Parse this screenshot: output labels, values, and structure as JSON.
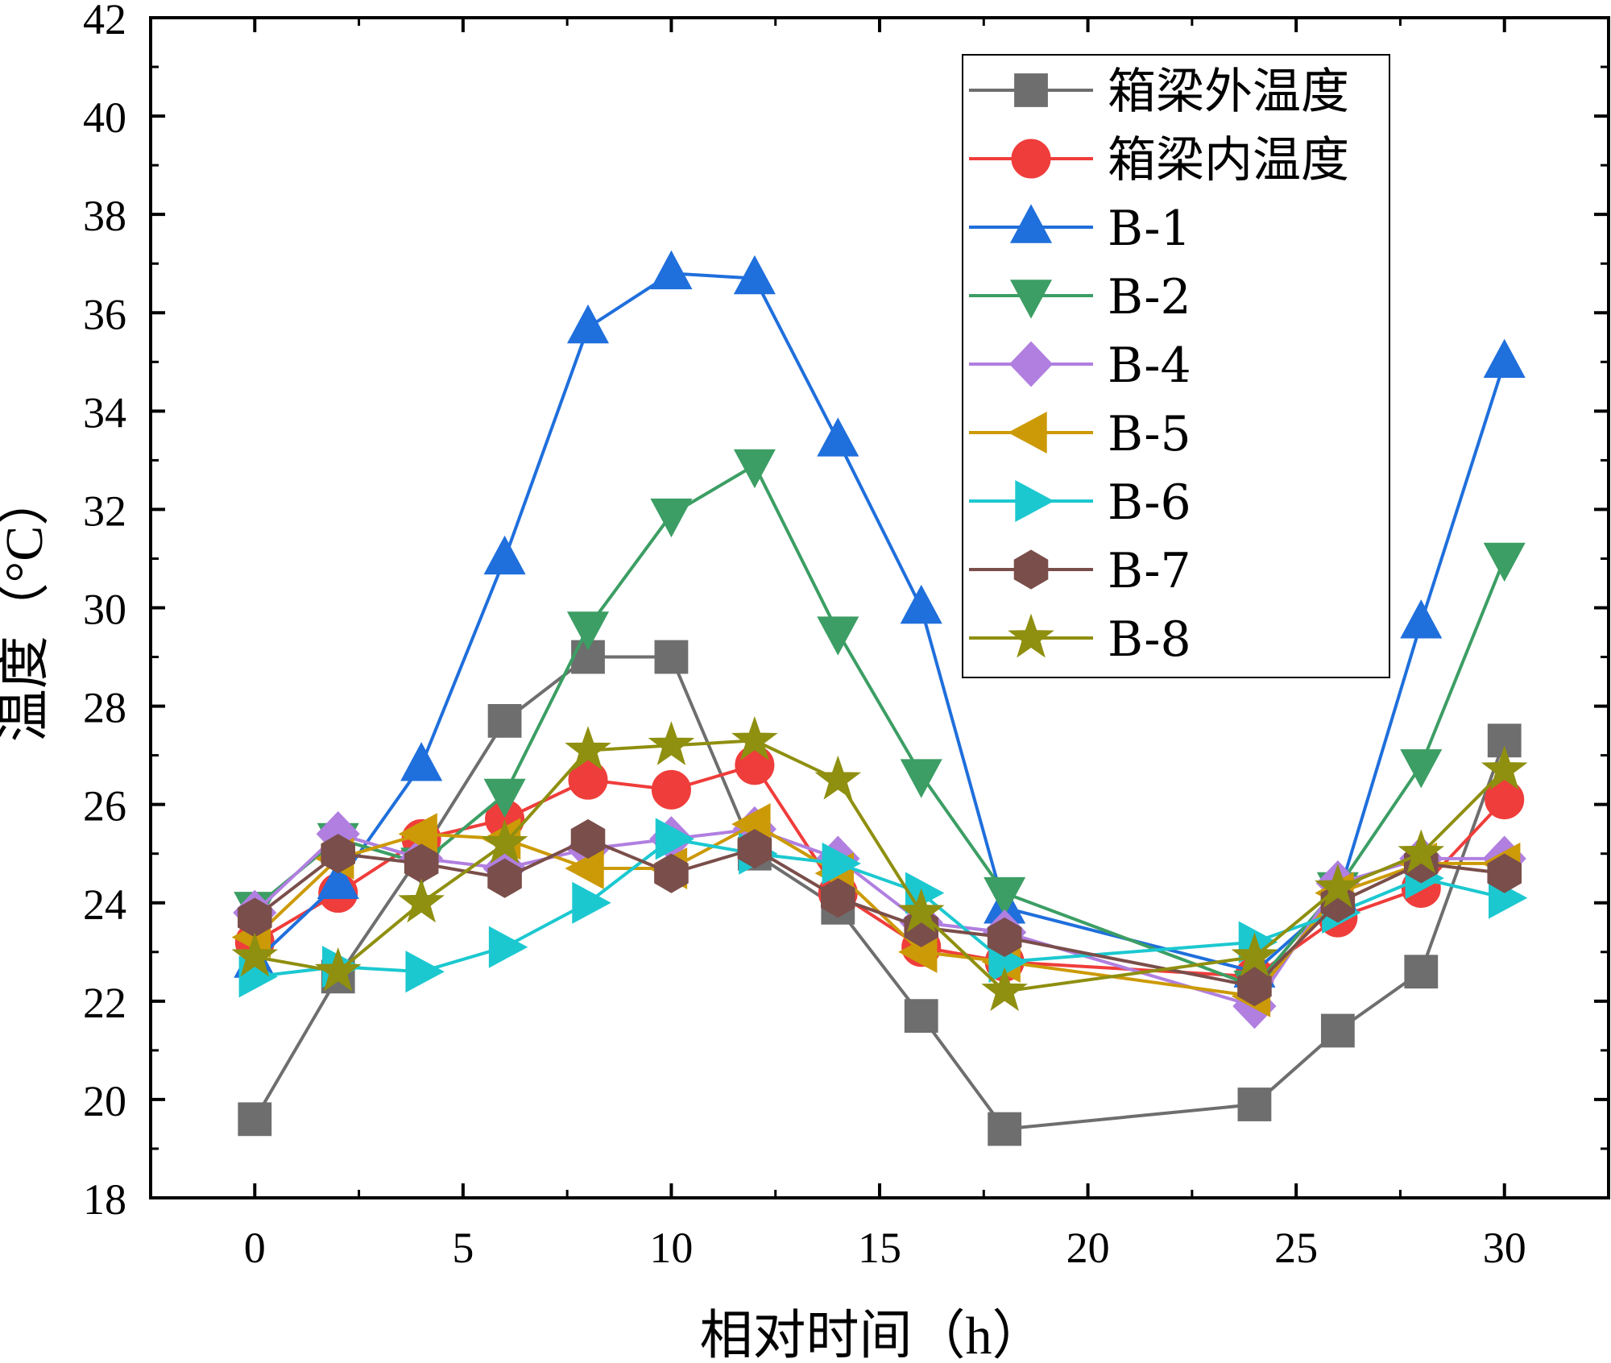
{
  "chart_data": {
    "type": "line",
    "title": "",
    "xlabel": "相对时间（h）",
    "ylabel": "温度（°C）",
    "xlim": [
      -2.5,
      32.5
    ],
    "ylim": [
      18,
      42
    ],
    "x_ticks": [
      "0",
      "5",
      "10",
      "15",
      "20",
      "25",
      "30"
    ],
    "x_tick_values": [
      0,
      5,
      10,
      15,
      20,
      25,
      30
    ],
    "y_ticks": [
      "18",
      "20",
      "22",
      "24",
      "26",
      "28",
      "30",
      "32",
      "34",
      "36",
      "38",
      "40",
      "42"
    ],
    "y_tick_values": [
      18,
      20,
      22,
      24,
      26,
      28,
      30,
      32,
      34,
      36,
      38,
      40,
      42
    ],
    "legend_position": "top-right",
    "x": [
      0,
      2,
      4,
      6,
      8,
      10,
      12,
      14,
      16,
      18,
      24,
      26,
      28,
      30
    ],
    "series": [
      {
        "name": "箱梁外温度",
        "color": "#6e6e6e",
        "marker": "square",
        "values": [
          19.6,
          22.5,
          25.0,
          27.7,
          29.0,
          29.0,
          25.0,
          23.9,
          21.7,
          19.4,
          19.9,
          21.4,
          22.6,
          27.3
        ]
      },
      {
        "name": "箱梁内温度",
        "color": "#ef3d3b",
        "marker": "circle",
        "values": [
          23.2,
          24.2,
          25.3,
          25.7,
          26.5,
          26.3,
          26.8,
          24.2,
          23.1,
          22.8,
          22.5,
          23.7,
          24.3,
          26.1
        ]
      },
      {
        "name": "B-1",
        "color": "#1f6fdc",
        "marker": "triangle-up",
        "values": [
          22.8,
          24.4,
          26.8,
          31.0,
          35.7,
          36.8,
          36.7,
          33.4,
          30.0,
          23.9,
          22.6,
          24.1,
          29.7,
          35.0
        ]
      },
      {
        "name": "B-2",
        "color": "#3c9e64",
        "marker": "triangle-down",
        "values": [
          23.9,
          25.3,
          24.8,
          26.2,
          29.6,
          31.9,
          32.9,
          29.5,
          26.6,
          24.2,
          22.3,
          24.3,
          26.8,
          31.0
        ]
      },
      {
        "name": "B-4",
        "color": "#b07fe0",
        "marker": "diamond",
        "values": [
          23.8,
          25.4,
          24.9,
          24.7,
          25.1,
          25.3,
          25.5,
          24.9,
          23.6,
          23.4,
          21.9,
          24.4,
          24.9,
          24.9
        ]
      },
      {
        "name": "B-5",
        "color": "#cc9a06",
        "marker": "triangle-left",
        "values": [
          23.3,
          24.9,
          25.4,
          25.3,
          24.7,
          24.7,
          25.6,
          24.6,
          23.0,
          22.8,
          22.1,
          24.2,
          24.8,
          24.8
        ]
      },
      {
        "name": "B-6",
        "color": "#1cc8d0",
        "marker": "triangle-right",
        "values": [
          22.5,
          22.7,
          22.6,
          23.1,
          24.0,
          25.3,
          25.0,
          24.8,
          24.2,
          22.8,
          23.2,
          23.8,
          24.5,
          24.1
        ]
      },
      {
        "name": "B-7",
        "color": "#7a4e4a",
        "marker": "hexagon",
        "values": [
          23.7,
          25.0,
          24.8,
          24.5,
          25.3,
          24.6,
          25.1,
          24.1,
          23.5,
          23.3,
          22.3,
          24.0,
          24.8,
          24.6
        ]
      },
      {
        "name": "B-8",
        "color": "#8f8f10",
        "marker": "star",
        "values": [
          22.9,
          22.6,
          24.0,
          25.2,
          27.1,
          27.2,
          27.3,
          26.5,
          23.8,
          22.2,
          22.9,
          24.3,
          25.0,
          26.7
        ]
      }
    ]
  }
}
